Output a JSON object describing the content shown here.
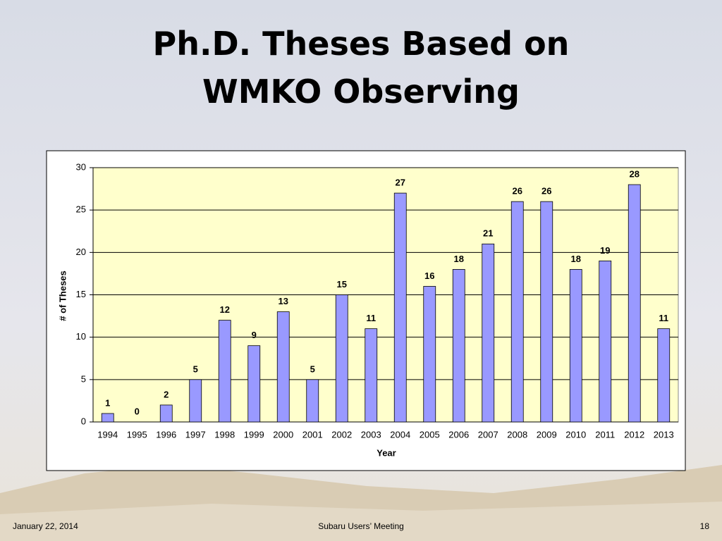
{
  "chart_data": {
    "type": "bar",
    "title": "Ph.D. Theses Based on WMKO Observing",
    "x_label": "Year",
    "y_label": "# of Theses",
    "categories": [
      "1994",
      "1995",
      "1996",
      "1997",
      "1998",
      "1999",
      "2000",
      "2001",
      "2002",
      "2003",
      "2004",
      "2005",
      "2006",
      "2007",
      "2008",
      "2009",
      "2010",
      "2011",
      "2012",
      "2013"
    ],
    "values": [
      1,
      0,
      2,
      5,
      12,
      9,
      13,
      5,
      15,
      11,
      27,
      16,
      18,
      21,
      26,
      26,
      18,
      19,
      28,
      11
    ],
    "color": "#9999ff",
    "ylim": [
      0,
      30
    ],
    "yticks": [
      0,
      5,
      10,
      15,
      20,
      25,
      30
    ],
    "grid": true
  },
  "footer": {
    "date": "January 22, 2014",
    "event": "Subaru Users’ Meeting",
    "page": "18"
  }
}
